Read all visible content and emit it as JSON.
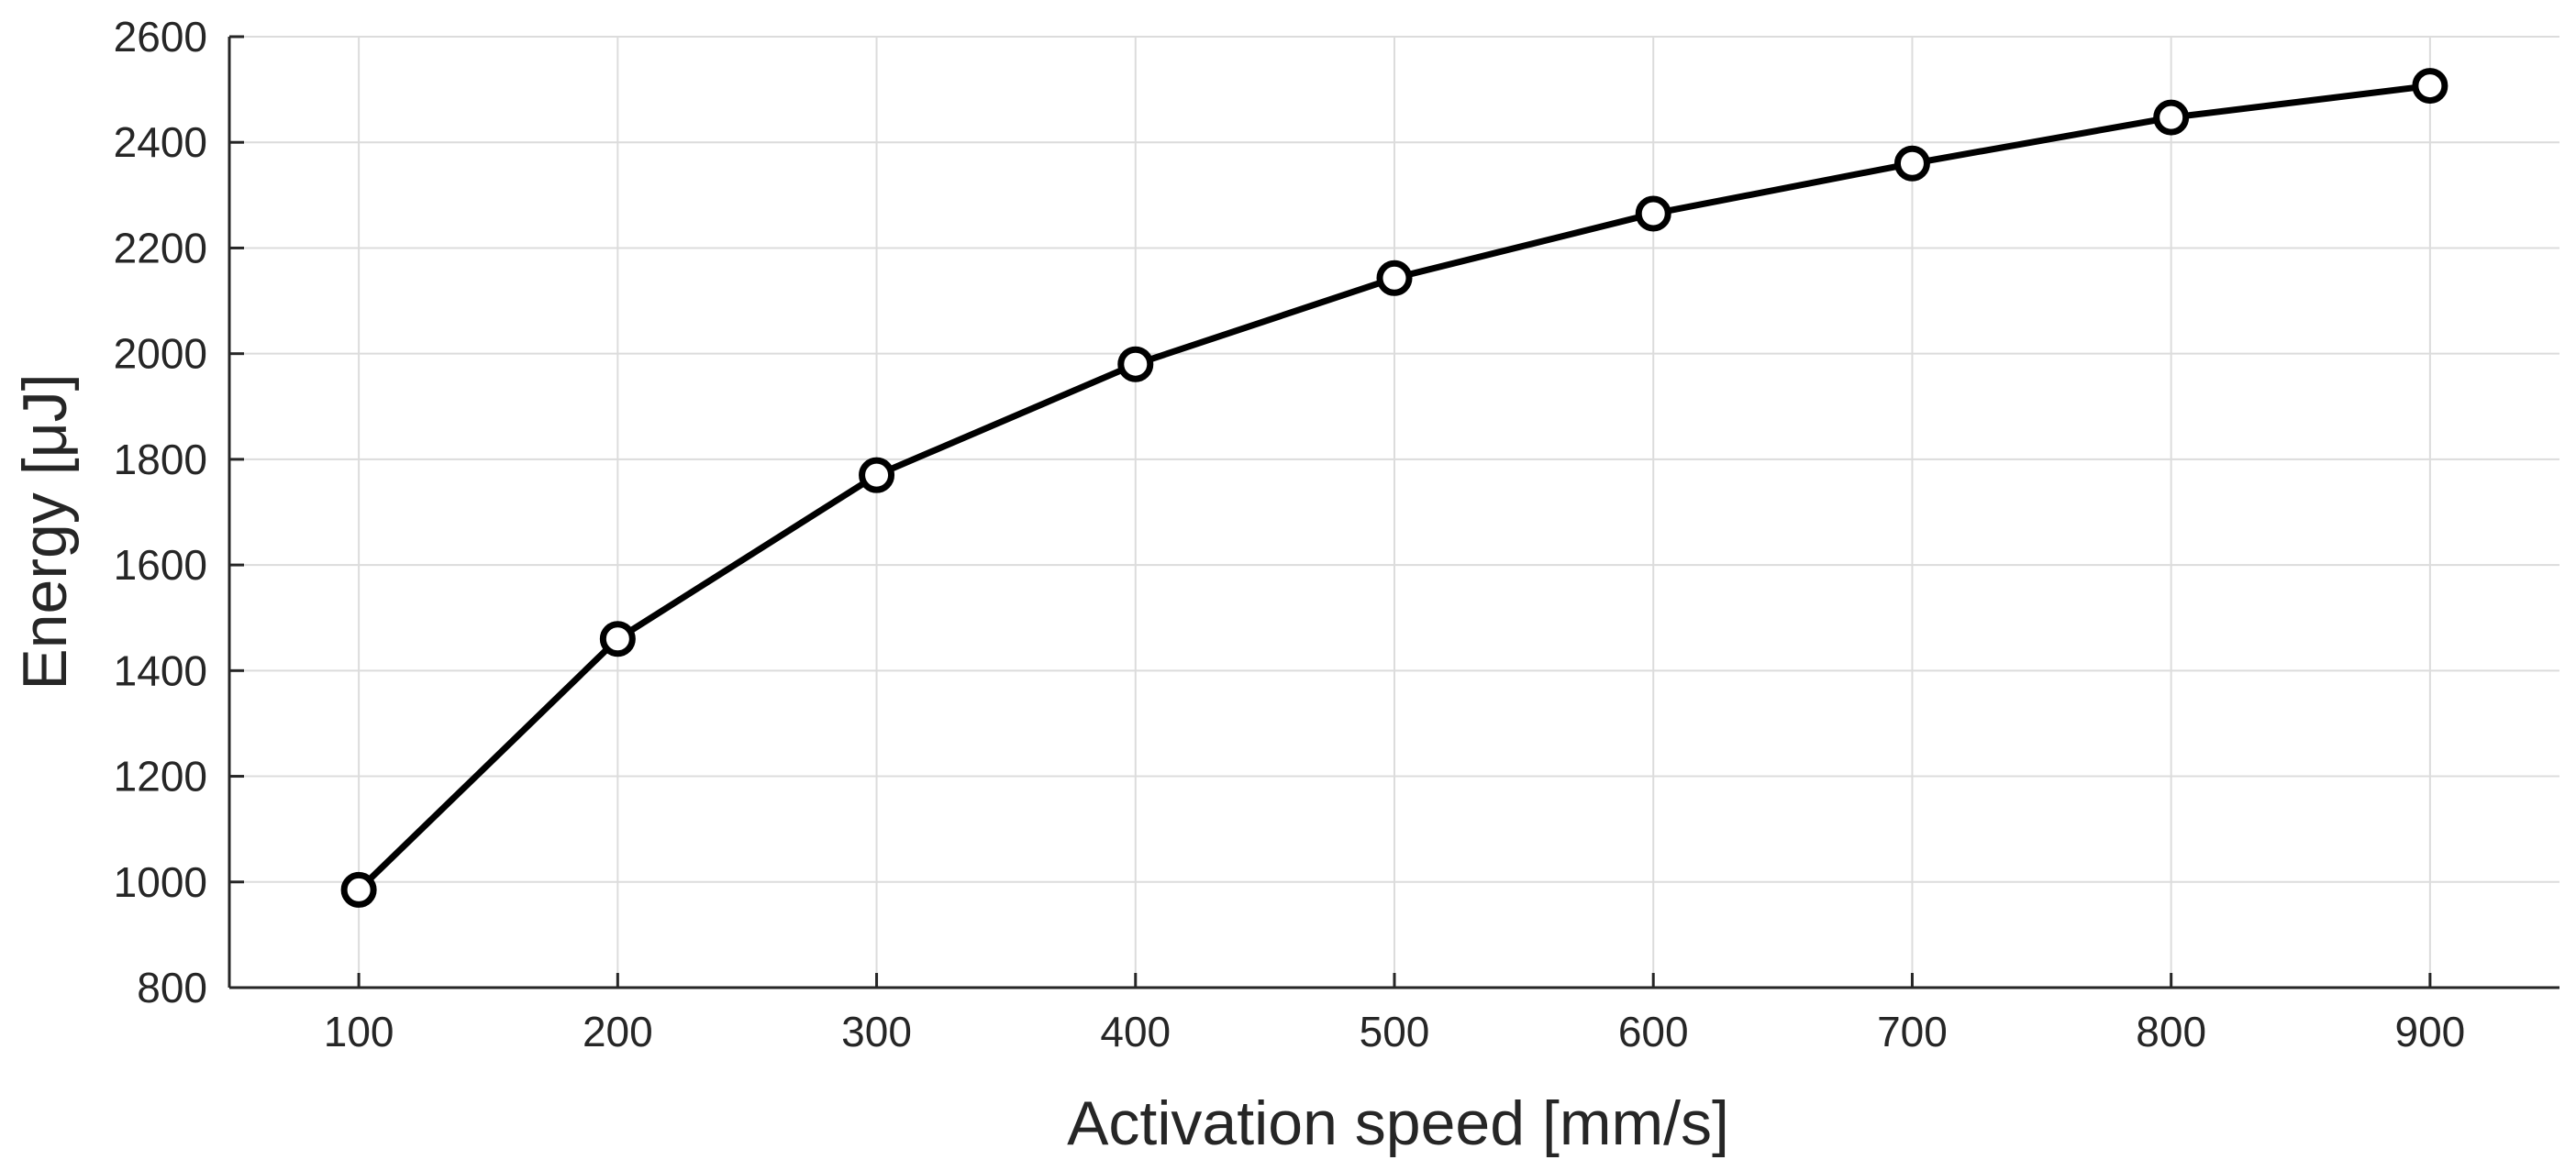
{
  "chart_data": {
    "type": "line",
    "title": "",
    "xlabel": "Activation speed [mm/s]",
    "ylabel": "Energy [μJ]",
    "xlim": [
      50,
      950
    ],
    "ylim": [
      800,
      2600
    ],
    "xticks": [
      100,
      200,
      300,
      400,
      500,
      600,
      700,
      800,
      900
    ],
    "yticks": [
      800,
      1000,
      1200,
      1400,
      1600,
      1800,
      2000,
      2200,
      2400,
      2600
    ],
    "grid": true,
    "legend": "none",
    "marker": "circle",
    "line_color": "#000000",
    "grid_color": "#dcdcdc",
    "axis_color": "#262626",
    "series": [
      {
        "x": [
          100,
          200,
          300,
          400,
          500,
          600,
          700,
          800,
          900
        ],
        "values": [
          985,
          1460,
          1770,
          1980,
          2143,
          2265,
          2360,
          2447,
          2507
        ]
      }
    ]
  }
}
